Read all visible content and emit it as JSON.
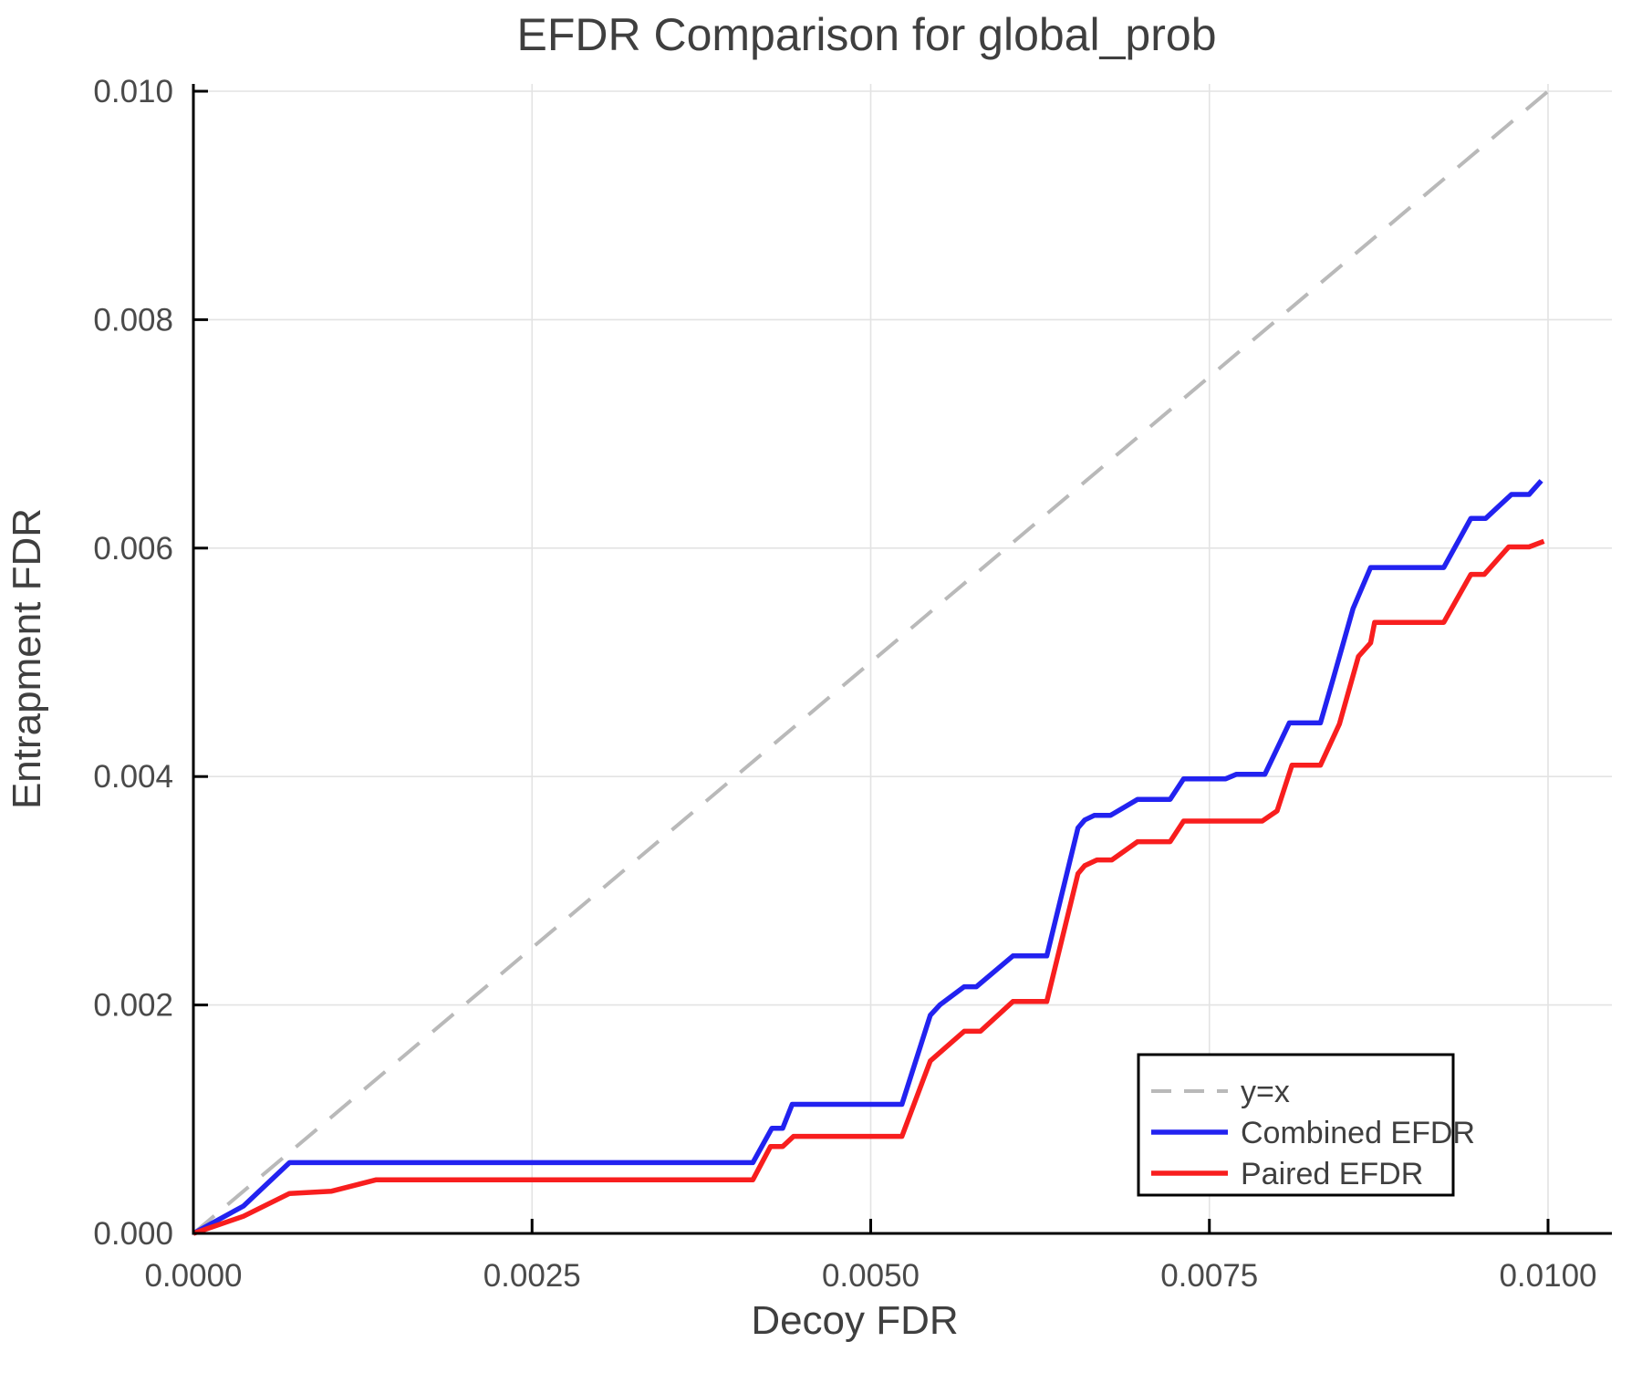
{
  "chart_data": {
    "type": "line",
    "title": "EFDR Comparison for global_prob",
    "xlabel": "Decoy FDR",
    "ylabel": "Entrapment FDR",
    "xlim": [
      0,
      0.01047
    ],
    "ylim": [
      0,
      0.01006
    ],
    "grid": true,
    "x_ticks": {
      "values": [
        0,
        0.0025,
        0.005,
        0.0075,
        0.01
      ],
      "labels": [
        "0.0000",
        "0.0025",
        "0.0050",
        "0.0075",
        "0.0100"
      ]
    },
    "y_ticks": {
      "values": [
        0,
        0.002,
        0.004,
        0.006,
        0.008,
        0.01
      ],
      "labels": [
        "0.000",
        "0.002",
        "0.004",
        "0.006",
        "0.008",
        "0.010"
      ]
    },
    "legend": {
      "position": "bottom-right",
      "items": [
        {
          "label": "y=x",
          "color": "#b9b9b9",
          "dashed": true
        },
        {
          "label": "Combined EFDR",
          "color": "#2222f0",
          "dashed": false
        },
        {
          "label": "Paired EFDR",
          "color": "#f81e1e",
          "dashed": false
        }
      ]
    },
    "series": [
      {
        "name": "y=x",
        "color": "#b9b9b9",
        "dashed": true,
        "width": 4,
        "points": [
          [
            0,
            0
          ],
          [
            0.01,
            0.01
          ]
        ]
      },
      {
        "name": "Combined EFDR",
        "color": "#2222f0",
        "dashed": false,
        "width": 5.5,
        "points": [
          [
            0,
            0
          ],
          [
            0.00037,
            0.00024
          ],
          [
            0.00071,
            0.00062
          ],
          [
            0.00413,
            0.00062
          ],
          [
            0.00427,
            0.00092
          ],
          [
            0.00435,
            0.00092
          ],
          [
            0.00442,
            0.00113
          ],
          [
            0.00523,
            0.00113
          ],
          [
            0.00544,
            0.00191
          ],
          [
            0.00551,
            0.002
          ],
          [
            0.00569,
            0.00216
          ],
          [
            0.00578,
            0.00216
          ],
          [
            0.00605,
            0.00243
          ],
          [
            0.0063,
            0.00243
          ],
          [
            0.00653,
            0.00355
          ],
          [
            0.00658,
            0.00362
          ],
          [
            0.00665,
            0.00366
          ],
          [
            0.00677,
            0.00366
          ],
          [
            0.00697,
            0.0038
          ],
          [
            0.00721,
            0.0038
          ],
          [
            0.00731,
            0.00398
          ],
          [
            0.00762,
            0.00398
          ],
          [
            0.0077,
            0.00402
          ],
          [
            0.00791,
            0.00402
          ],
          [
            0.00809,
            0.00447
          ],
          [
            0.00832,
            0.00447
          ],
          [
            0.00841,
            0.00484
          ],
          [
            0.00856,
            0.00547
          ],
          [
            0.00869,
            0.00583
          ],
          [
            0.00923,
            0.00583
          ],
          [
            0.00943,
            0.00626
          ],
          [
            0.00954,
            0.00626
          ],
          [
            0.00973,
            0.00647
          ],
          [
            0.00986,
            0.00647
          ],
          [
            0.00995,
            0.00659
          ]
        ]
      },
      {
        "name": "Paired EFDR",
        "color": "#f81e1e",
        "dashed": false,
        "width": 5.5,
        "points": [
          [
            0,
            0
          ],
          [
            0.00037,
            0.00015
          ],
          [
            0.00071,
            0.00035
          ],
          [
            0.00102,
            0.00037
          ],
          [
            0.00135,
            0.00047
          ],
          [
            0.00413,
            0.00047
          ],
          [
            0.00426,
            0.00076
          ],
          [
            0.00435,
            0.00076
          ],
          [
            0.00443,
            0.00085
          ],
          [
            0.00523,
            0.00085
          ],
          [
            0.00544,
            0.00151
          ],
          [
            0.00569,
            0.00177
          ],
          [
            0.00581,
            0.00177
          ],
          [
            0.00605,
            0.00203
          ],
          [
            0.0063,
            0.00203
          ],
          [
            0.00653,
            0.00315
          ],
          [
            0.00658,
            0.00322
          ],
          [
            0.00667,
            0.00327
          ],
          [
            0.00678,
            0.00327
          ],
          [
            0.00697,
            0.00343
          ],
          [
            0.00721,
            0.00343
          ],
          [
            0.00731,
            0.00361
          ],
          [
            0.00789,
            0.00361
          ],
          [
            0.008,
            0.0037
          ],
          [
            0.00811,
            0.0041
          ],
          [
            0.00832,
            0.0041
          ],
          [
            0.00846,
            0.00446
          ],
          [
            0.0086,
            0.00505
          ],
          [
            0.00869,
            0.00517
          ],
          [
            0.00872,
            0.00535
          ],
          [
            0.00923,
            0.00535
          ],
          [
            0.00943,
            0.00577
          ],
          [
            0.00953,
            0.00577
          ],
          [
            0.00971,
            0.00601
          ],
          [
            0.00986,
            0.00601
          ],
          [
            0.00997,
            0.00606
          ]
        ]
      }
    ]
  },
  "colors": {
    "background": "#ffffff",
    "text": "#3f3f3f",
    "tick_text": "#4a4a4a",
    "grid": "#e3e3e3",
    "axis": "#000000",
    "legend_border": "#000000",
    "legend_fill": "#ffffff"
  }
}
